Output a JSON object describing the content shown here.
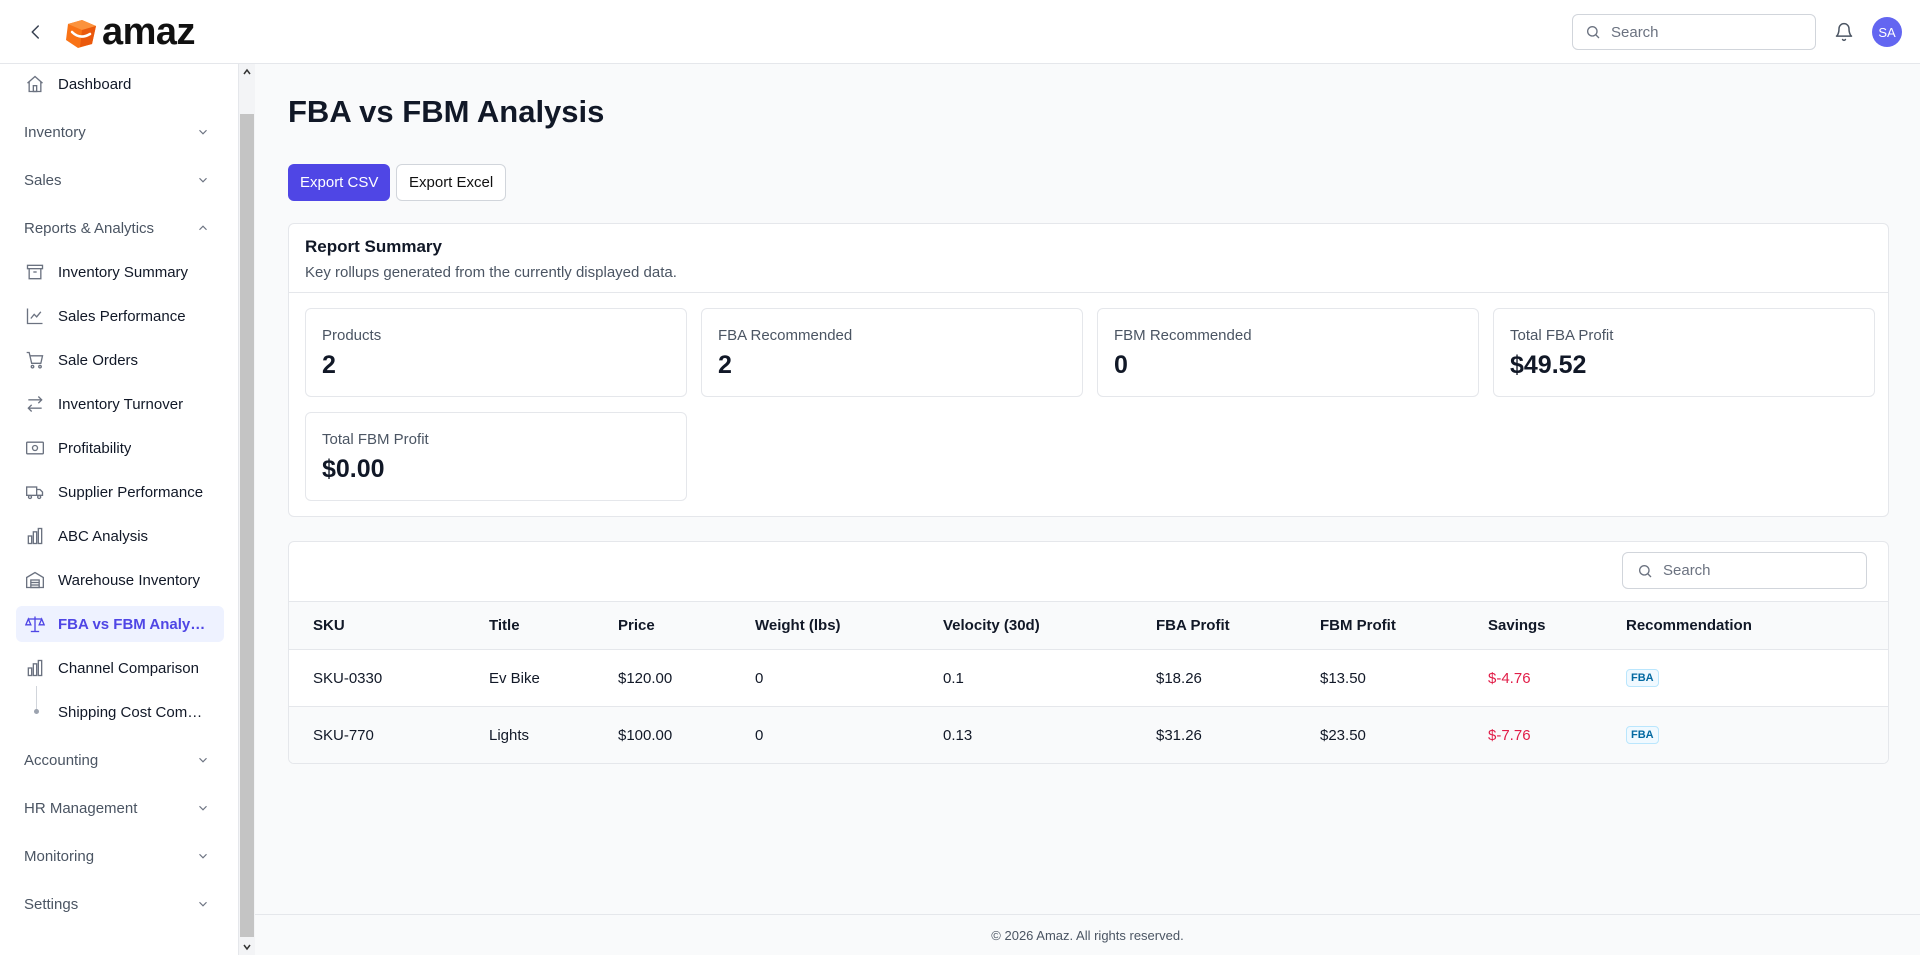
{
  "header": {
    "logo_text": "amaz",
    "search_placeholder": "Search",
    "avatar_initials": "SA"
  },
  "sidebar": {
    "dashboard": "Dashboard",
    "groups": {
      "inventory": "Inventory",
      "sales": "Sales",
      "reports": "Reports & Analytics",
      "accounting": "Accounting",
      "hr": "HR Management",
      "monitoring": "Monitoring",
      "settings": "Settings"
    },
    "reports_items": [
      {
        "label": "Inventory Summary",
        "icon": "archive-icon"
      },
      {
        "label": "Sales Performance",
        "icon": "chart-line-icon"
      },
      {
        "label": "Sale Orders",
        "icon": "cart-icon"
      },
      {
        "label": "Inventory Turnover",
        "icon": "arrows-exchange-icon"
      },
      {
        "label": "Profitability",
        "icon": "banknote-icon"
      },
      {
        "label": "Supplier Performance",
        "icon": "truck-icon"
      },
      {
        "label": "ABC Analysis",
        "icon": "bar-chart-icon"
      },
      {
        "label": "Warehouse Inventory",
        "icon": "warehouse-icon"
      },
      {
        "label": "FBA vs FBM Analysis",
        "icon": "scale-icon"
      },
      {
        "label": "Channel Comparison",
        "icon": "bar-chart-icon"
      }
    ],
    "sub_item": "Shipping Cost Comp..."
  },
  "main": {
    "title": "FBA vs FBM Analysis",
    "export_csv": "Export CSV",
    "export_excel": "Export Excel",
    "summary": {
      "title": "Report Summary",
      "description": "Key rollups generated from the currently displayed data.",
      "stats": [
        {
          "label": "Products",
          "value": "2"
        },
        {
          "label": "FBA Recommended",
          "value": "2"
        },
        {
          "label": "FBM Recommended",
          "value": "0"
        },
        {
          "label": "Total FBA Profit",
          "value": "$49.52"
        },
        {
          "label": "Total FBM Profit",
          "value": "$0.00"
        }
      ]
    },
    "table": {
      "search_placeholder": "Search",
      "columns": [
        "SKU",
        "Title",
        "Price",
        "Weight (lbs)",
        "Velocity (30d)",
        "FBA Profit",
        "FBM Profit",
        "Savings",
        "Recommendation"
      ],
      "rows": [
        {
          "sku": "SKU-0330",
          "title": "Ev Bike",
          "price": "$120.00",
          "weight": "0",
          "velocity": "0.1",
          "fba_profit": "$18.26",
          "fbm_profit": "$13.50",
          "savings": "$-4.76",
          "recommendation": "FBA"
        },
        {
          "sku": "SKU-770",
          "title": "Lights",
          "price": "$100.00",
          "weight": "0",
          "velocity": "0.13",
          "fba_profit": "$31.26",
          "fbm_profit": "$23.50",
          "savings": "$-7.76",
          "recommendation": "FBA"
        }
      ]
    }
  },
  "footer": {
    "text": "© 2026 Amaz. All rights reserved."
  },
  "colors": {
    "accent": "#4f46e5",
    "negative": "#e11d48",
    "badge": "#0369a1"
  }
}
